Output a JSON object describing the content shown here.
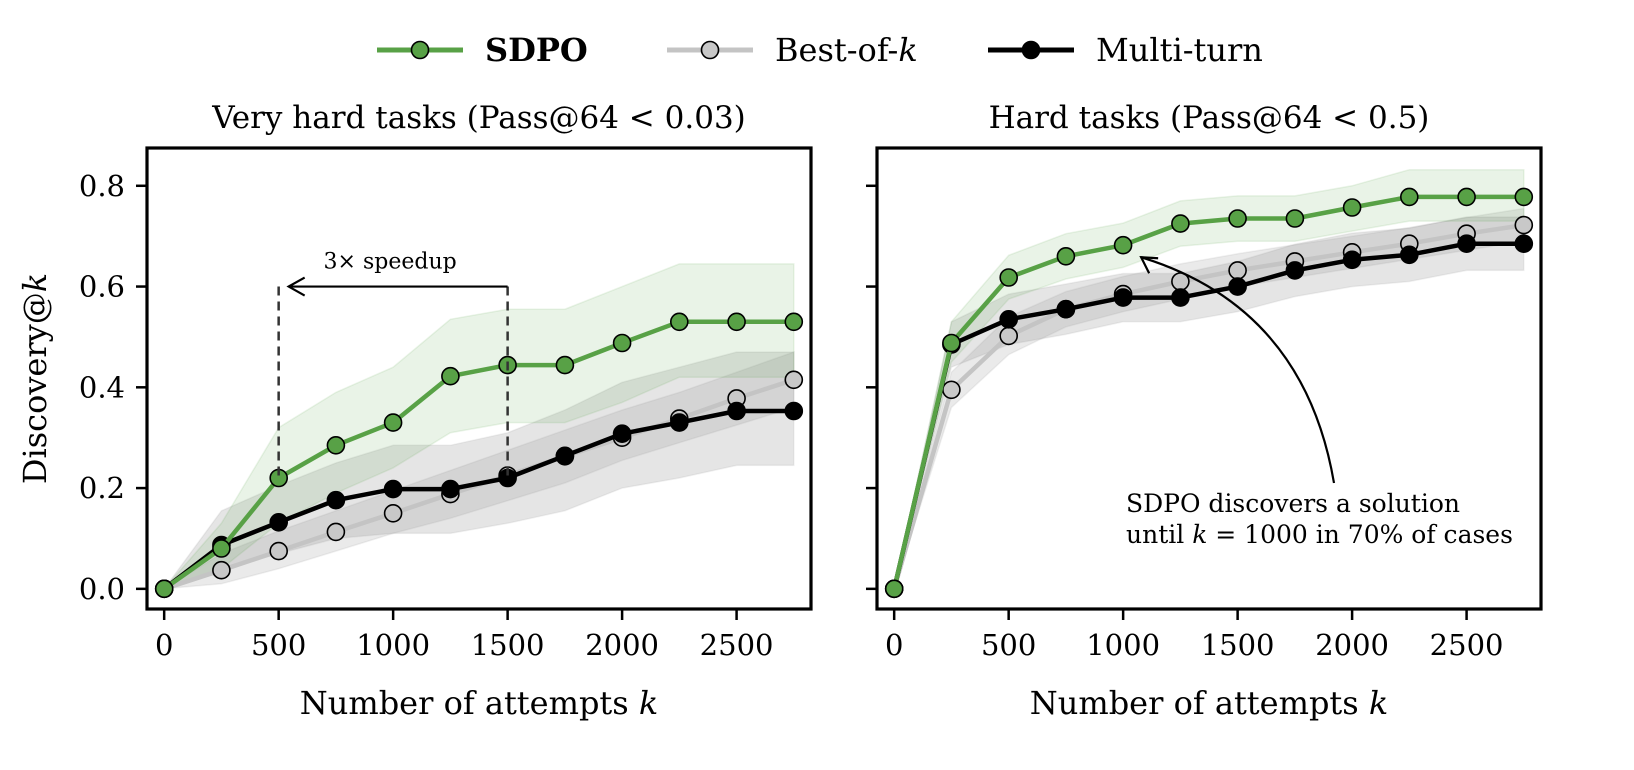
{
  "legend": {
    "items": [
      {
        "label": "SDPO",
        "color": "#58a146",
        "marker_fill": "#58a146",
        "bold": true
      },
      {
        "label": "Best-of-k",
        "color": "#c4c4c4",
        "marker_fill": "#c8c8c8",
        "bold": false
      },
      {
        "label": "Multi-turn",
        "color": "#000000",
        "marker_fill": "#000000",
        "bold": false
      }
    ]
  },
  "shared": {
    "xlabel": "Number of attempts k",
    "ylabel": "Discovery@k"
  },
  "annotations": {
    "speedup_label": "3× speedup",
    "callout_line1": "SDPO discovers a solution",
    "callout_line2": "until k = 1000 in 70% of cases"
  },
  "chart_data": [
    {
      "type": "line",
      "title": "Very hard tasks (Pass@64 < 0.03)",
      "xlabel": "Number of attempts k",
      "ylabel": "Discovery@k",
      "xlim": [
        -75,
        2825
      ],
      "ylim": [
        -0.04,
        0.875
      ],
      "xticks": [
        0,
        500,
        1000,
        1500,
        2000,
        2500
      ],
      "yticks": [
        0.0,
        0.2,
        0.4,
        0.6,
        0.8
      ],
      "x": [
        0,
        250,
        500,
        750,
        1000,
        1250,
        1500,
        1750,
        2000,
        2250,
        2500,
        2750
      ],
      "series": [
        {
          "name": "Best-of-k",
          "values": [
            0.0,
            0.037,
            0.075,
            0.113,
            0.15,
            0.188,
            0.225,
            0.263,
            0.3,
            0.338,
            0.378,
            0.415
          ],
          "band_lower": [
            0.0,
            0.01,
            0.04,
            0.075,
            0.11,
            0.14,
            0.175,
            0.21,
            0.255,
            0.29,
            0.325,
            0.36
          ],
          "band_upper": [
            0.0,
            0.07,
            0.115,
            0.155,
            0.195,
            0.235,
            0.275,
            0.315,
            0.355,
            0.39,
            0.43,
            0.47
          ]
        },
        {
          "name": "Multi-turn",
          "values": [
            0.0,
            0.087,
            0.132,
            0.176,
            0.198,
            0.198,
            0.22,
            0.264,
            0.308,
            0.33,
            0.353,
            0.353
          ],
          "band_lower": [
            0.0,
            0.04,
            0.07,
            0.1,
            0.11,
            0.11,
            0.13,
            0.155,
            0.2,
            0.22,
            0.245,
            0.245
          ],
          "band_upper": [
            0.0,
            0.155,
            0.205,
            0.25,
            0.285,
            0.285,
            0.31,
            0.355,
            0.41,
            0.44,
            0.47,
            0.47
          ]
        },
        {
          "name": "SDPO",
          "values": [
            0.0,
            0.08,
            0.22,
            0.285,
            0.33,
            0.422,
            0.444,
            0.444,
            0.488,
            0.53,
            0.53,
            0.53
          ],
          "band_lower": [
            0.0,
            0.04,
            0.13,
            0.19,
            0.24,
            0.31,
            0.33,
            0.33,
            0.37,
            0.42,
            0.42,
            0.42
          ],
          "band_upper": [
            0.0,
            0.13,
            0.32,
            0.39,
            0.44,
            0.535,
            0.555,
            0.555,
            0.6,
            0.645,
            0.645,
            0.645
          ]
        }
      ]
    },
    {
      "type": "line",
      "title": "Hard tasks (Pass@64 < 0.5)",
      "xlabel": "Number of attempts k",
      "ylabel": "",
      "xlim": [
        -75,
        2825
      ],
      "ylim": [
        -0.04,
        0.875
      ],
      "xticks": [
        0,
        500,
        1000,
        1500,
        2000,
        2500
      ],
      "yticks": [
        0.0,
        0.2,
        0.4,
        0.6,
        0.8
      ],
      "x": [
        0,
        250,
        500,
        750,
        1000,
        1250,
        1500,
        1750,
        2000,
        2250,
        2500,
        2750
      ],
      "series": [
        {
          "name": "Best-of-k",
          "values": [
            0.0,
            0.395,
            0.502,
            0.555,
            0.585,
            0.61,
            0.632,
            0.65,
            0.668,
            0.685,
            0.705,
            0.722
          ],
          "band_lower": [
            0.0,
            0.36,
            0.465,
            0.52,
            0.55,
            0.575,
            0.6,
            0.618,
            0.636,
            0.654,
            0.672,
            0.69
          ],
          "band_upper": [
            0.0,
            0.43,
            0.54,
            0.59,
            0.62,
            0.645,
            0.665,
            0.683,
            0.7,
            0.717,
            0.737,
            0.755
          ]
        },
        {
          "name": "Multi-turn",
          "values": [
            0.0,
            0.485,
            0.535,
            0.555,
            0.578,
            0.578,
            0.6,
            0.632,
            0.653,
            0.663,
            0.685,
            0.685
          ],
          "band_lower": [
            0.0,
            0.44,
            0.485,
            0.505,
            0.53,
            0.53,
            0.55,
            0.58,
            0.6,
            0.61,
            0.632,
            0.632
          ],
          "band_upper": [
            0.0,
            0.53,
            0.585,
            0.605,
            0.626,
            0.626,
            0.65,
            0.684,
            0.706,
            0.716,
            0.738,
            0.738
          ]
        },
        {
          "name": "SDPO",
          "values": [
            0.0,
            0.488,
            0.618,
            0.66,
            0.682,
            0.725,
            0.735,
            0.735,
            0.757,
            0.778,
            0.778,
            0.778
          ],
          "band_lower": [
            0.0,
            0.45,
            0.575,
            0.615,
            0.638,
            0.68,
            0.69,
            0.69,
            0.71,
            0.73,
            0.73,
            0.73
          ],
          "band_upper": [
            0.0,
            0.53,
            0.662,
            0.705,
            0.726,
            0.77,
            0.78,
            0.78,
            0.8,
            0.832,
            0.832,
            0.832
          ]
        }
      ]
    }
  ]
}
